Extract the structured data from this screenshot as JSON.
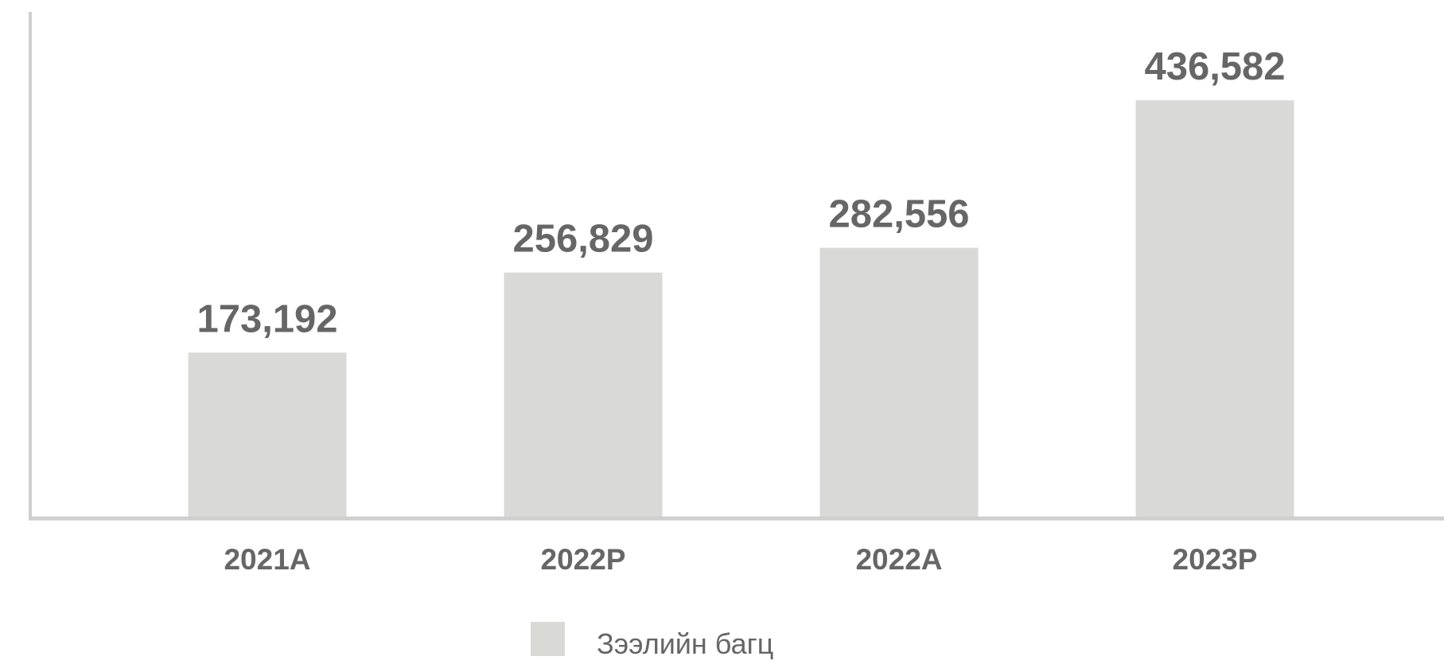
{
  "chart_data": {
    "type": "bar",
    "categories": [
      "2021A",
      "2022P",
      "2022A",
      "2023P"
    ],
    "series": [
      {
        "name": "Зээлийн багц",
        "values": [
          173192,
          256829,
          282556,
          436582
        ]
      }
    ],
    "value_labels": [
      "173,192",
      "256,829",
      "282,556",
      "436,582"
    ],
    "ylim": [
      0,
      525000
    ],
    "grid": false,
    "legend_position": "bottom-center",
    "colors": {
      "bar": "#d9d9d5",
      "axis": "#cfcfcf",
      "text": "#666666"
    }
  }
}
